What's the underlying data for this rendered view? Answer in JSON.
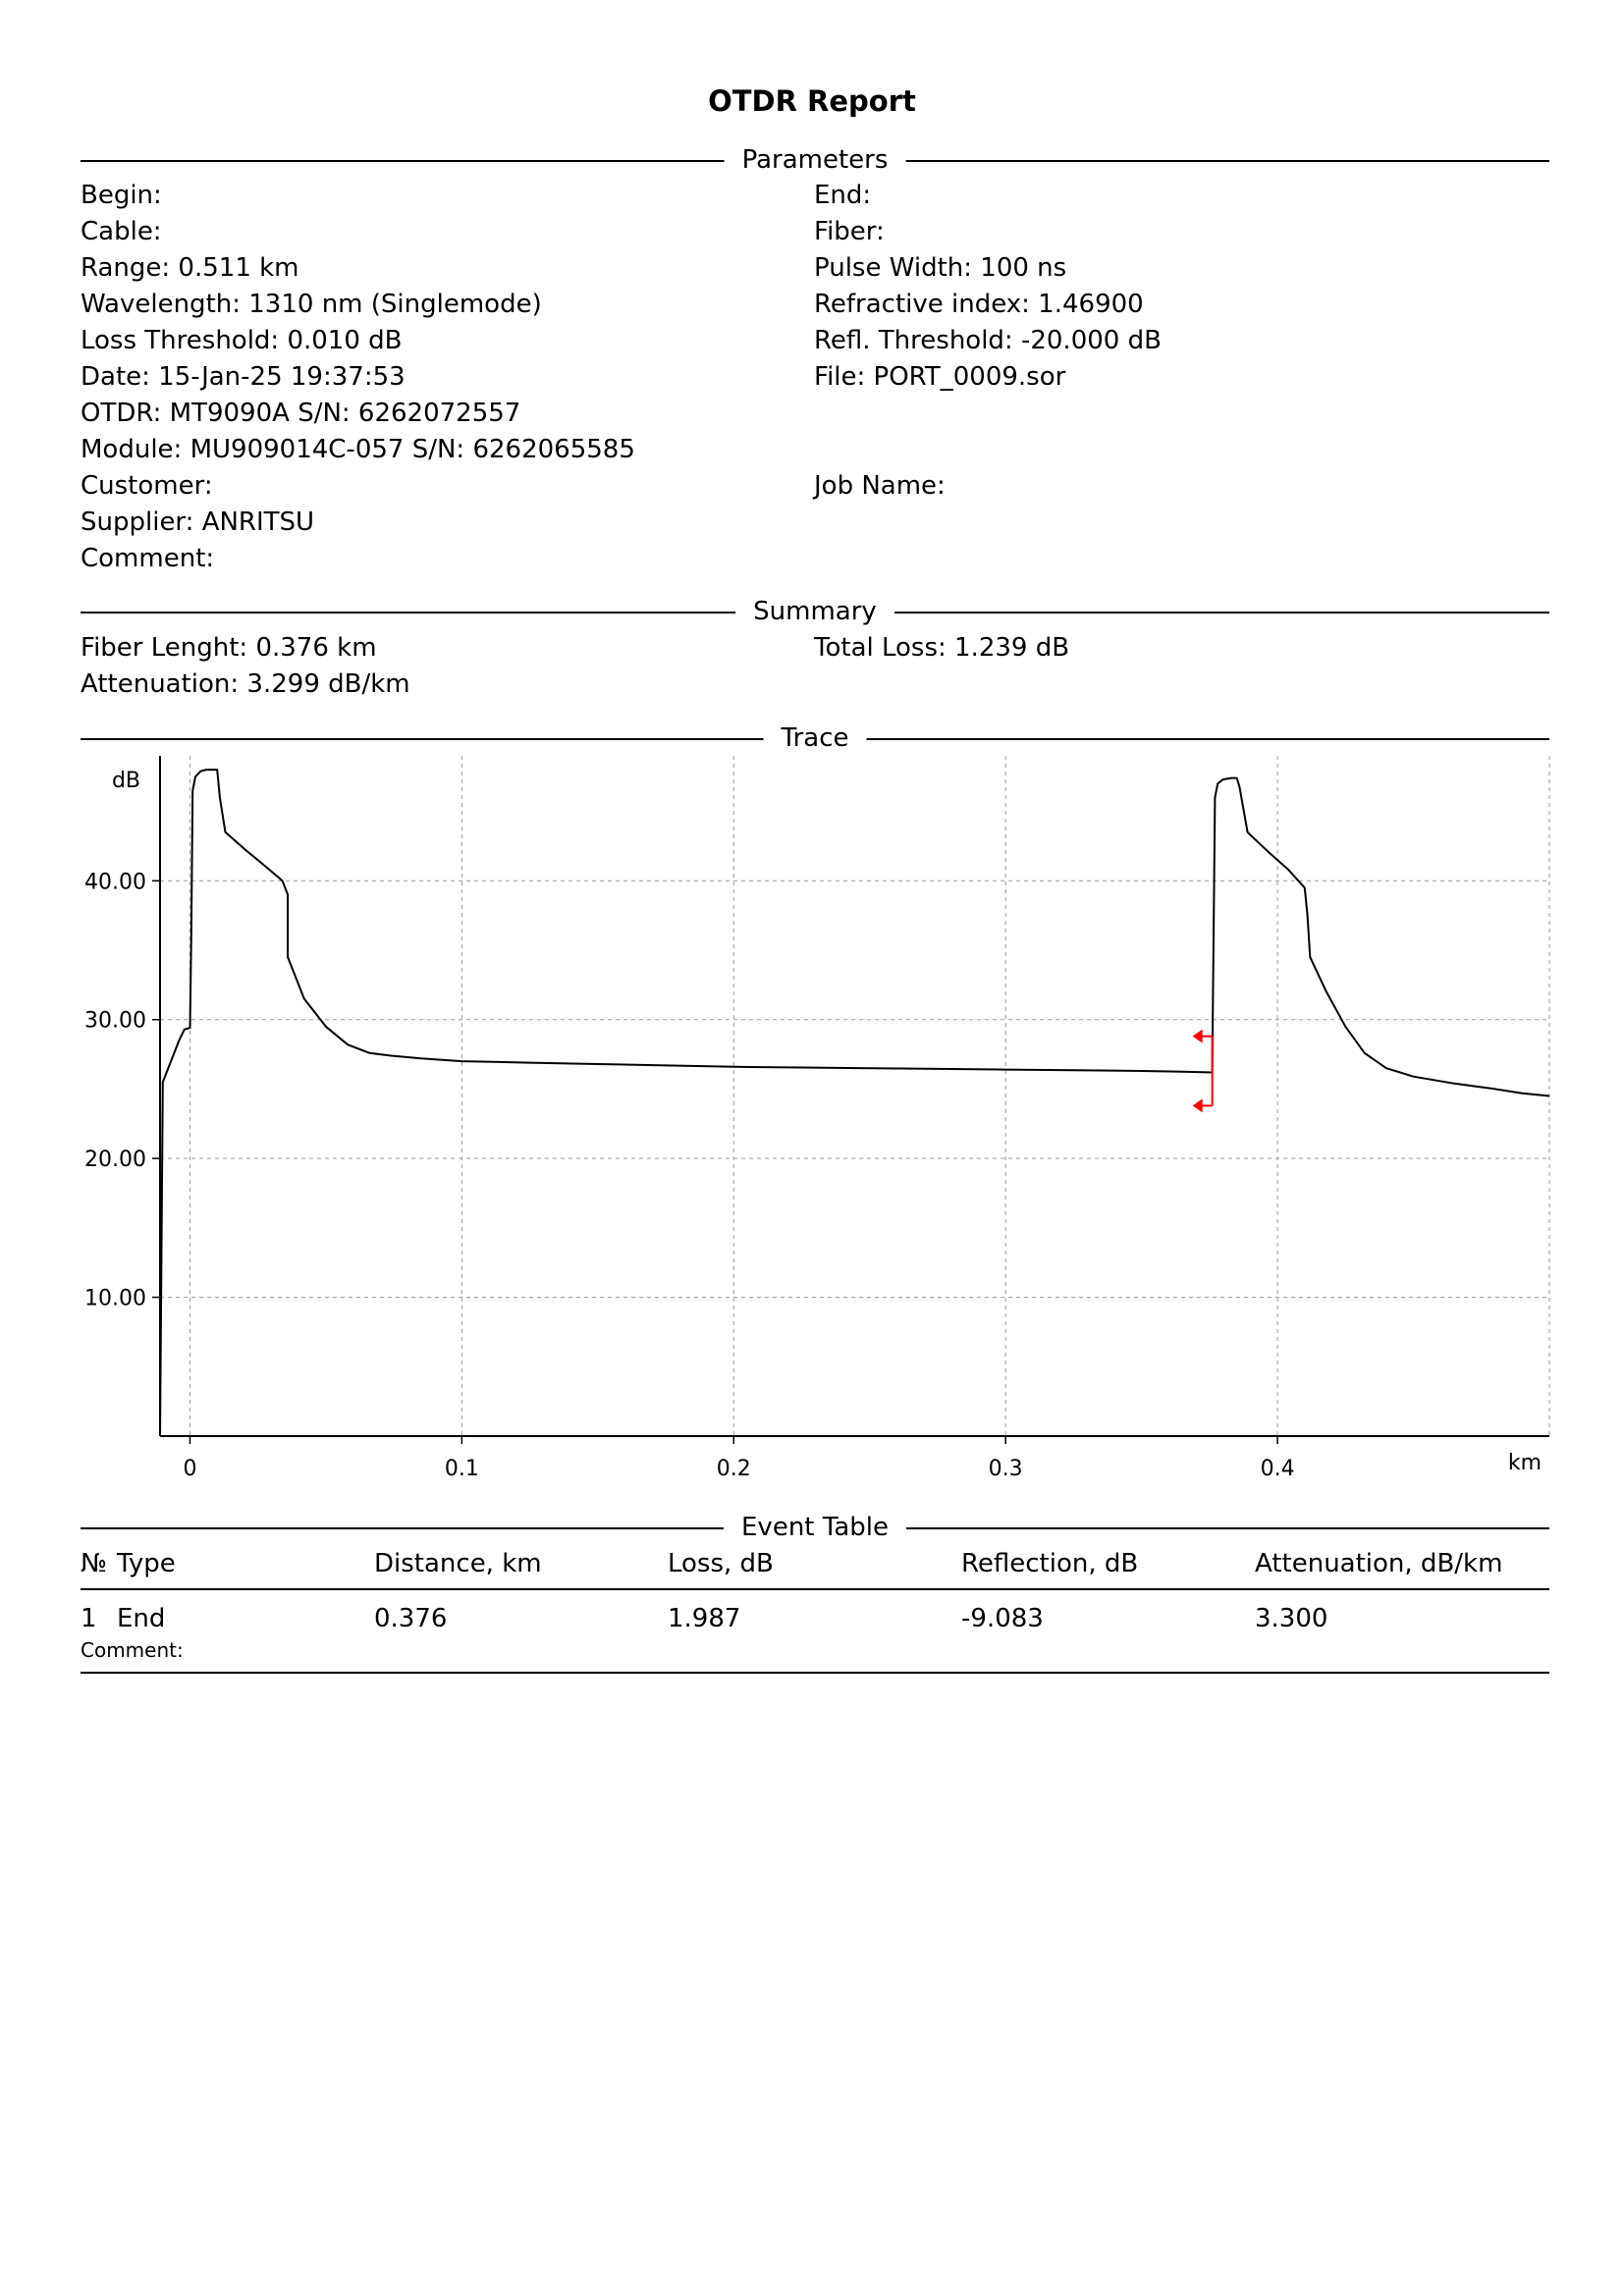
{
  "report": {
    "title": "OTDR Report"
  },
  "sections": {
    "parameters": "Parameters",
    "summary": "Summary",
    "trace": "Trace",
    "event_table": "Event Table"
  },
  "parameters": {
    "begin": "Begin:",
    "end": "End:",
    "cable": "Cable:",
    "fiber": "Fiber:",
    "range": "Range: 0.511 km",
    "pulse_width": "Pulse Width: 100 ns",
    "wavelength": "Wavelength: 1310 nm (Singlemode)",
    "refractive_index": "Refractive index: 1.46900",
    "loss_threshold": "Loss Threshold: 0.010 dB",
    "refl_threshold": "Refl. Threshold: -20.000 dB",
    "date": "Date: 15-Jan-25 19:37:53",
    "file": "File: PORT_0009.sor",
    "otdr": "OTDR: MT9090A S/N: 6262072557",
    "module": "Module: MU909014C-057 S/N: 6262065585",
    "customer": "Customer:",
    "job_name": "Job Name:",
    "supplier": "Supplier: ANRITSU",
    "comment": "Comment:"
  },
  "summary": {
    "fiber_length": "Fiber Lenght: 0.376 km",
    "total_loss": "Total Loss: 1.239 dB",
    "attenuation": "Attenuation: 3.299 dB/km"
  },
  "chart_data": {
    "type": "line",
    "title": "",
    "xlabel": "km",
    "ylabel": "dB",
    "xlim": [
      -0.011,
      0.5
    ],
    "ylim": [
      0,
      49
    ],
    "grid": true,
    "x_ticks": [
      0,
      0.1,
      0.2,
      0.3,
      0.4
    ],
    "x_tick_labels": [
      "0",
      "0.1",
      "0.2",
      "0.3",
      "0.4"
    ],
    "y_ticks": [
      10,
      20,
      30,
      40
    ],
    "y_tick_labels": [
      "10.00",
      "20.00",
      "30.00",
      "40.00"
    ],
    "series": [
      {
        "x": [
          -0.011,
          -0.01,
          -0.007,
          -0.004,
          -0.002,
          0.0,
          0.0005,
          0.001,
          0.002,
          0.004,
          0.006,
          0.008,
          0.01,
          0.011,
          0.013,
          0.02,
          0.028,
          0.034,
          0.036,
          0.036,
          0.037,
          0.042,
          0.05,
          0.058,
          0.066,
          0.074,
          0.085,
          0.1,
          0.125,
          0.15,
          0.175,
          0.2,
          0.225,
          0.25,
          0.275,
          0.3,
          0.325,
          0.35,
          0.365,
          0.376,
          0.3765,
          0.377,
          0.378,
          0.38,
          0.383,
          0.385,
          0.386,
          0.389,
          0.396,
          0.404,
          0.41,
          0.411,
          0.412,
          0.418,
          0.425,
          0.432,
          0.44,
          0.45,
          0.465,
          0.48,
          0.49,
          0.5
        ],
        "y": [
          0.0,
          25.5,
          27.0,
          28.5,
          29.3,
          29.4,
          36.0,
          46.5,
          47.5,
          47.9,
          48.0,
          48.0,
          48.0,
          46.0,
          43.5,
          42.3,
          41.0,
          40.0,
          39.0,
          34.5,
          34.0,
          31.5,
          29.5,
          28.2,
          27.6,
          27.4,
          27.2,
          27.0,
          26.9,
          26.8,
          26.7,
          26.6,
          26.55,
          26.5,
          26.45,
          26.4,
          26.35,
          26.3,
          26.25,
          26.2,
          36.0,
          46.0,
          47.0,
          47.3,
          47.4,
          47.4,
          46.8,
          43.5,
          42.2,
          40.8,
          39.5,
          37.5,
          34.5,
          32.0,
          29.5,
          27.6,
          26.5,
          25.9,
          25.4,
          25.0,
          24.7,
          24.5
        ]
      }
    ],
    "markers": [
      {
        "x": 0.376,
        "y_top": 28.8,
        "y_bottom": 23.8,
        "color": "#ff0000"
      }
    ]
  },
  "event_table": {
    "headers": [
      "№",
      "Type",
      "Distance, km",
      "Loss, dB",
      "Reflection, dB",
      "Attenuation, dB/km"
    ],
    "rows": [
      {
        "no": "1",
        "type": "End",
        "distance": "0.376",
        "loss": "1.987",
        "reflection": "-9.083",
        "attenuation": "3.300",
        "comment_label": "Comment:"
      }
    ]
  }
}
